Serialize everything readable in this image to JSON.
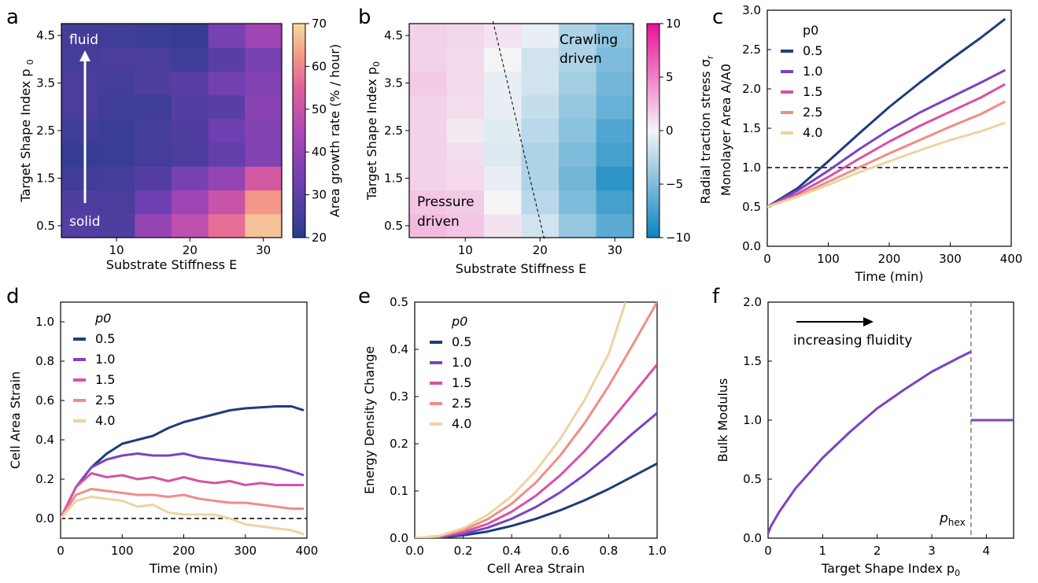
{
  "panels": {
    "a": {
      "label": "a",
      "annotation_top": "fluid",
      "annotation_bottom": "solid",
      "colorbar_label": "Area growth rate (% / hour)"
    },
    "b": {
      "label": "b",
      "annotation_pressure_1": "Pressure",
      "annotation_pressure_2": "driven",
      "annotation_crawling_1": "Crawling",
      "annotation_crawling_2": "driven",
      "colorbar_label_main": "Radial traction stress σ",
      "colorbar_label_sub": "r"
    },
    "c": {
      "label": "c",
      "legend_title": "p0",
      "ylabel_line1_main": "Radial traction stress σ",
      "ylabel_line1_sub": "r",
      "ylabel_line2": "Monolayer Area A/A0"
    },
    "d": {
      "label": "d",
      "legend_title": "p0"
    },
    "e": {
      "label": "e",
      "legend_title": "p0"
    },
    "f": {
      "label": "f",
      "annotation": "increasing fluidity",
      "phex_main": "p",
      "phex_sub": "hex"
    }
  },
  "colors": {
    "p0.5": "#1f3d7a",
    "p1.0": "#7a44c4",
    "p1.5": "#d652a6",
    "p2.5": "#f08d86",
    "p4.0": "#ecd4a2",
    "f_curve": "#7a44c4"
  },
  "chart_data": [
    {
      "id": "a",
      "type": "heatmap",
      "title": "",
      "xlabel": "Substrate Stiffness E",
      "ylabel_main": "Target Shape Index p",
      "ylabel_sub": "0",
      "x_categories": [
        5,
        10,
        15,
        20,
        25,
        30
      ],
      "x_ticks": [
        10,
        20,
        30
      ],
      "xlim": [
        2.5,
        32.5
      ],
      "y_categories": [
        0.5,
        1.0,
        1.5,
        2.0,
        2.5,
        3.0,
        3.5,
        4.0,
        4.5
      ],
      "y_ticks": [
        0.5,
        1.5,
        2.5,
        3.5,
        4.5
      ],
      "values": [
        [
          28,
          27,
          40,
          48,
          57,
          67
        ],
        [
          27,
          26,
          33,
          42,
          50,
          62
        ],
        [
          24,
          25,
          28,
          35,
          40,
          52
        ],
        [
          22,
          23,
          25,
          26,
          31,
          37
        ],
        [
          24,
          23,
          25,
          27,
          33,
          37
        ],
        [
          26,
          24,
          24,
          28,
          29,
          38
        ],
        [
          26,
          25,
          27,
          29,
          34,
          37
        ],
        [
          25,
          26,
          26,
          24,
          29,
          35
        ],
        [
          25,
          24,
          23,
          22,
          35,
          42
        ]
      ],
      "colorbar": {
        "min": 20,
        "max": 70,
        "ticks": [
          20,
          30,
          40,
          50,
          60,
          70
        ],
        "label": "Area growth rate (% / hour)"
      },
      "colormap": "magma_light"
    },
    {
      "id": "b",
      "type": "heatmap",
      "title": "",
      "xlabel": "Substrate Stiffness E",
      "ylabel_main": "Target Shape Index p",
      "ylabel_sub": "0",
      "x_categories": [
        5,
        10,
        15,
        20,
        25,
        30
      ],
      "x_ticks": [
        10,
        20,
        30
      ],
      "xlim": [
        2.5,
        32.5
      ],
      "y_categories": [
        0.5,
        1.0,
        1.5,
        2.0,
        2.5,
        3.0,
        3.5,
        4.0,
        4.5
      ],
      "y_ticks": [
        0.5,
        1.5,
        2.5,
        3.5,
        4.5
      ],
      "values": [
        [
          2.5,
          2.0,
          0.8,
          -1.5,
          -4.0,
          -6.5
        ],
        [
          2.0,
          1.8,
          0.0,
          -2.5,
          -5.0,
          -7.5
        ],
        [
          1.5,
          1.2,
          -0.5,
          -3.0,
          -5.5,
          -8.5
        ],
        [
          1.5,
          1.0,
          -1.0,
          -3.0,
          -5.0,
          -7.5
        ],
        [
          1.5,
          0.5,
          -0.8,
          -2.5,
          -4.5,
          -7.0
        ],
        [
          1.5,
          1.0,
          -0.5,
          -2.0,
          -4.0,
          -6.0
        ],
        [
          1.8,
          1.2,
          -0.5,
          -1.5,
          -3.5,
          -5.5
        ],
        [
          1.5,
          1.2,
          0.0,
          -1.5,
          -3.0,
          -5.0
        ],
        [
          1.5,
          1.3,
          0.8,
          -0.5,
          -3.0,
          -4.5
        ]
      ],
      "colorbar": {
        "min": -10,
        "max": 10,
        "ticks": [
          -10,
          -5,
          0,
          5,
          10
        ],
        "tick_labels": [
          "−10",
          "−5",
          "0",
          "5",
          "10"
        ],
        "label": "Radial traction stress"
      },
      "dashed_line": {
        "x": [
          13.7,
          20.6
        ],
        "y": [
          4.8,
          0.2
        ]
      },
      "colormap": "blue_white_pink"
    },
    {
      "id": "c",
      "type": "line",
      "title": "",
      "xlabel": "Time (min)",
      "ylabel": "Monolayer Area",
      "xlim": [
        0,
        400
      ],
      "ylim": [
        0,
        3.0
      ],
      "x_ticks": [
        0,
        100,
        200,
        300,
        400
      ],
      "y_ticks": [
        0.0,
        0.5,
        1.0,
        1.5,
        2.0,
        2.5,
        3.0
      ],
      "y_tick_labels": [
        "0.0",
        "0.5",
        "1.0",
        "1.5",
        "2.0",
        "2.5",
        "3.0"
      ],
      "hline": 1.0,
      "legend_title": "p0",
      "legend_position": "top-left",
      "series": [
        {
          "name": "0.5",
          "color_key": "p0.5",
          "x": [
            0,
            50,
            100,
            150,
            200,
            250,
            300,
            350,
            390
          ],
          "y": [
            0.5,
            0.74,
            1.08,
            1.43,
            1.77,
            2.08,
            2.37,
            2.65,
            2.89
          ]
        },
        {
          "name": "1.0",
          "color_key": "p1.0",
          "x": [
            0,
            50,
            100,
            150,
            200,
            250,
            300,
            350,
            390
          ],
          "y": [
            0.5,
            0.71,
            0.96,
            1.23,
            1.48,
            1.7,
            1.89,
            2.08,
            2.24
          ]
        },
        {
          "name": "1.5",
          "color_key": "p1.5",
          "x": [
            0,
            50,
            100,
            150,
            200,
            250,
            300,
            350,
            390
          ],
          "y": [
            0.5,
            0.67,
            0.88,
            1.11,
            1.33,
            1.53,
            1.71,
            1.89,
            2.06
          ]
        },
        {
          "name": "2.5",
          "color_key": "p2.5",
          "x": [
            0,
            50,
            100,
            150,
            200,
            250,
            300,
            350,
            390
          ],
          "y": [
            0.5,
            0.64,
            0.82,
            1.0,
            1.18,
            1.35,
            1.52,
            1.68,
            1.84
          ]
        },
        {
          "name": "4.0",
          "color_key": "p4.0",
          "x": [
            0,
            50,
            100,
            150,
            200,
            250,
            300,
            350,
            390
          ],
          "y": [
            0.5,
            0.63,
            0.78,
            0.94,
            1.08,
            1.22,
            1.35,
            1.46,
            1.57
          ]
        }
      ]
    },
    {
      "id": "d",
      "type": "line",
      "title": "",
      "xlabel": "Time (min)",
      "ylabel": "Cell Area Strain",
      "xlim": [
        0,
        400
      ],
      "ylim": [
        -0.1,
        1.1
      ],
      "x_ticks": [
        0,
        100,
        200,
        300,
        400
      ],
      "y_ticks": [
        0.0,
        0.2,
        0.4,
        0.6,
        0.8,
        1.0
      ],
      "y_tick_labels": [
        "0.0",
        "0.2",
        "0.4",
        "0.6",
        "0.8",
        "1.0"
      ],
      "hline": 0.0,
      "legend_title": "p0",
      "legend_position": "top-left",
      "series": [
        {
          "name": "0.5",
          "color_key": "p0.5",
          "x": [
            0,
            25,
            50,
            75,
            100,
            125,
            150,
            175,
            200,
            225,
            250,
            275,
            300,
            325,
            350,
            375,
            395
          ],
          "y": [
            0.0,
            0.16,
            0.26,
            0.33,
            0.38,
            0.4,
            0.42,
            0.46,
            0.49,
            0.51,
            0.53,
            0.55,
            0.56,
            0.565,
            0.57,
            0.57,
            0.55
          ]
        },
        {
          "name": "1.0",
          "color_key": "p1.0",
          "x": [
            0,
            25,
            50,
            75,
            100,
            125,
            150,
            175,
            200,
            225,
            250,
            275,
            300,
            325,
            350,
            375,
            395
          ],
          "y": [
            0.0,
            0.16,
            0.26,
            0.3,
            0.32,
            0.33,
            0.32,
            0.32,
            0.33,
            0.31,
            0.3,
            0.29,
            0.28,
            0.27,
            0.26,
            0.24,
            0.22
          ]
        },
        {
          "name": "1.5",
          "color_key": "p1.5",
          "x": [
            0,
            25,
            50,
            75,
            100,
            125,
            150,
            175,
            200,
            225,
            250,
            275,
            300,
            325,
            350,
            375,
            395
          ],
          "y": [
            0.0,
            0.16,
            0.23,
            0.21,
            0.22,
            0.2,
            0.21,
            0.19,
            0.21,
            0.19,
            0.18,
            0.19,
            0.17,
            0.18,
            0.17,
            0.17,
            0.17
          ]
        },
        {
          "name": "2.5",
          "color_key": "p2.5",
          "x": [
            0,
            25,
            50,
            75,
            100,
            125,
            150,
            175,
            200,
            225,
            250,
            275,
            300,
            325,
            350,
            375,
            395
          ],
          "y": [
            0.0,
            0.12,
            0.15,
            0.14,
            0.13,
            0.12,
            0.12,
            0.11,
            0.12,
            0.1,
            0.09,
            0.08,
            0.08,
            0.07,
            0.06,
            0.05,
            0.05
          ]
        },
        {
          "name": "4.0",
          "color_key": "p4.0",
          "x": [
            0,
            25,
            50,
            75,
            100,
            125,
            150,
            175,
            200,
            225,
            250,
            275,
            300,
            325,
            350,
            375,
            395
          ],
          "y": [
            0.0,
            0.09,
            0.11,
            0.1,
            0.09,
            0.06,
            0.07,
            0.03,
            0.02,
            0.02,
            0.02,
            0.0,
            -0.03,
            -0.04,
            -0.05,
            -0.06,
            -0.08
          ]
        }
      ]
    },
    {
      "id": "e",
      "type": "line",
      "title": "",
      "xlabel": "Cell Area Strain",
      "ylabel": "Energy Density Change",
      "xlim": [
        0,
        1.0
      ],
      "ylim": [
        0,
        0.5
      ],
      "x_ticks": [
        0.0,
        0.2,
        0.4,
        0.6,
        0.8,
        1.0
      ],
      "x_tick_labels": [
        "0.0",
        "0.2",
        "0.4",
        "0.6",
        "0.8",
        "1.0"
      ],
      "y_ticks": [
        0.0,
        0.1,
        0.2,
        0.3,
        0.4,
        0.5
      ],
      "y_tick_labels": [
        "0.0",
        "0.1",
        "0.2",
        "0.3",
        "0.4",
        "0.5"
      ],
      "legend_title": "p0",
      "legend_position": "top-left",
      "series": [
        {
          "name": "0.5",
          "color_key": "p0.5",
          "x": [
            0,
            0.1,
            0.2,
            0.3,
            0.4,
            0.5,
            0.6,
            0.7,
            0.8,
            0.9,
            1.0
          ],
          "y": [
            0,
            0.001,
            0.006,
            0.014,
            0.026,
            0.041,
            0.059,
            0.08,
            0.104,
            0.131,
            0.158
          ]
        },
        {
          "name": "1.0",
          "color_key": "p1.0",
          "x": [
            0,
            0.1,
            0.2,
            0.3,
            0.4,
            0.5,
            0.6,
            0.7,
            0.8,
            0.9,
            1.0
          ],
          "y": [
            0,
            0.002,
            0.009,
            0.022,
            0.041,
            0.066,
            0.097,
            0.134,
            0.176,
            0.222,
            0.265
          ]
        },
        {
          "name": "1.5",
          "color_key": "p1.5",
          "x": [
            0,
            0.1,
            0.2,
            0.3,
            0.4,
            0.5,
            0.6,
            0.7,
            0.8,
            0.9,
            1.0
          ],
          "y": [
            0,
            0.003,
            0.013,
            0.03,
            0.056,
            0.09,
            0.133,
            0.184,
            0.243,
            0.305,
            0.368
          ]
        },
        {
          "name": "2.5",
          "color_key": "p2.5",
          "x": [
            0,
            0.1,
            0.2,
            0.3,
            0.4,
            0.5,
            0.6,
            0.7,
            0.8,
            0.9,
            1.0
          ],
          "y": [
            0,
            0.004,
            0.017,
            0.04,
            0.073,
            0.118,
            0.175,
            0.243,
            0.322,
            0.41,
            0.5
          ]
        },
        {
          "name": "4.0",
          "color_key": "p4.0",
          "x": [
            0,
            0.1,
            0.2,
            0.3,
            0.4,
            0.5,
            0.6,
            0.7,
            0.8,
            0.87
          ],
          "y": [
            0,
            0.005,
            0.021,
            0.049,
            0.089,
            0.143,
            0.21,
            0.292,
            0.39,
            0.5
          ]
        }
      ]
    },
    {
      "id": "f",
      "type": "line",
      "title": "",
      "xlabel_main": "Target Shape Index p",
      "xlabel_sub": "0",
      "ylabel": "Bulk Modulus",
      "xlim": [
        0,
        4.5
      ],
      "ylim": [
        0,
        2.0
      ],
      "x_ticks": [
        0,
        1,
        2,
        3,
        4
      ],
      "y_ticks": [
        0.0,
        0.5,
        1.0,
        1.5,
        2.0
      ],
      "y_tick_labels": [
        "0.0",
        "0.5",
        "1.0",
        "1.5",
        "2.0"
      ],
      "vline": 3.72,
      "series": [
        {
          "name": "",
          "color_key": "f_curve",
          "x": [
            0,
            0.05,
            0.2,
            0.5,
            1.0,
            1.5,
            2.0,
            2.5,
            3.0,
            3.5,
            3.72
          ],
          "y": [
            0.04,
            0.1,
            0.22,
            0.42,
            0.68,
            0.9,
            1.1,
            1.26,
            1.41,
            1.53,
            1.58
          ]
        },
        {
          "name": "",
          "color_key": "f_curve",
          "x": [
            3.72,
            4.5
          ],
          "y": [
            1.0,
            1.0
          ]
        }
      ]
    }
  ]
}
